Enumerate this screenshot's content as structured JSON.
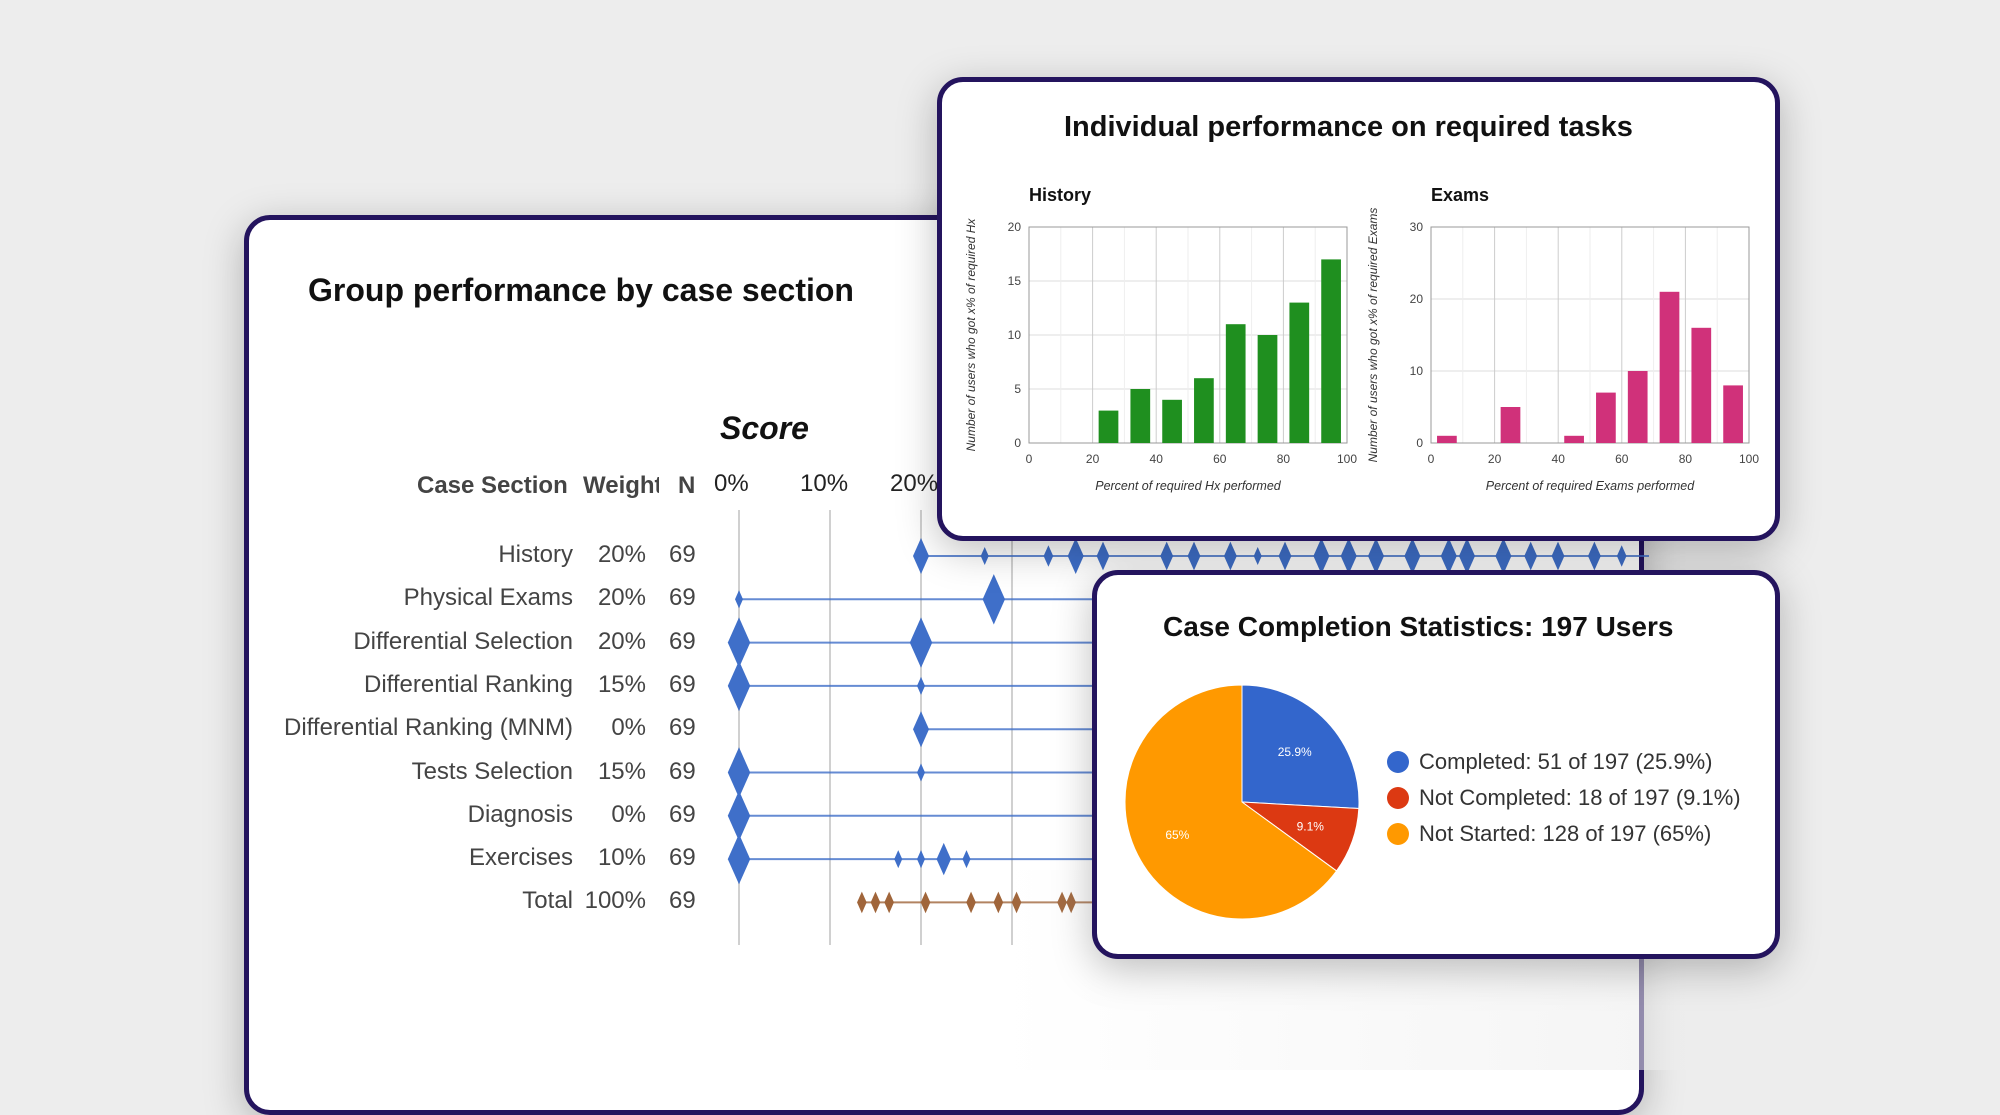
{
  "group": {
    "title": "Group performance by case section",
    "score_label": "Score",
    "headers": {
      "section": "Case Section",
      "weight": "Weight",
      "n": "N"
    },
    "axis_ticks": [
      "0%",
      "10%",
      "20%"
    ],
    "rows": [
      {
        "section": "History",
        "weight": "20%",
        "n": "69"
      },
      {
        "section": "Physical Exams",
        "weight": "20%",
        "n": "69"
      },
      {
        "section": "Differential Selection",
        "weight": "20%",
        "n": "69"
      },
      {
        "section": "Differential Ranking",
        "weight": "15%",
        "n": "69"
      },
      {
        "section": "Differential Ranking (MNM)",
        "weight": "0%",
        "n": "69"
      },
      {
        "section": "Tests Selection",
        "weight": "15%",
        "n": "69"
      },
      {
        "section": "Diagnosis",
        "weight": "0%",
        "n": "69"
      },
      {
        "section": "Exercises",
        "weight": "10%",
        "n": "69"
      },
      {
        "section": "Total",
        "weight": "100%",
        "n": "69"
      }
    ],
    "colors": {
      "section_marker": "#3f6fc9",
      "total_marker": "#a0653a"
    }
  },
  "individual": {
    "title": "Individual performance on required tasks"
  },
  "pie": {
    "title": "Case Completion Statistics: 197 Users",
    "legend": [
      {
        "label": "Completed: 51 of 197 (25.9%)",
        "color": "#3366cc"
      },
      {
        "label": "Not Completed: 18 of 197 (9.1%)",
        "color": "#dc3912"
      },
      {
        "label": "Not Started: 128 of 197 (65%)",
        "color": "#ff9900"
      }
    ]
  },
  "chart_data": [
    {
      "type": "scatter",
      "title": "Group performance by case section",
      "subtitle": "Score",
      "categories": [
        "History",
        "Physical Exams",
        "Differential Selection",
        "Differential Ranking",
        "Differential Ranking (MNM)",
        "Tests Selection",
        "Diagnosis",
        "Exercises",
        "Total"
      ],
      "x_ticks": [
        "0%",
        "10%",
        "20%"
      ],
      "points": [
        {
          "row": 0,
          "x": [
            20,
            27,
            34,
            37,
            40,
            47,
            50,
            54,
            57,
            60,
            64,
            67,
            70,
            74,
            78,
            80,
            84,
            87,
            90,
            94,
            97
          ],
          "size": [
            1,
            0.5,
            0.6,
            1,
            0.8,
            0.8,
            0.8,
            0.8,
            0.5,
            0.8,
            1,
            1,
            1,
            1,
            1,
            1,
            1,
            0.8,
            0.8,
            0.8,
            0.6
          ]
        },
        {
          "row": 1,
          "x": [
            0,
            28
          ],
          "size": [
            0.5,
            1.4
          ]
        },
        {
          "row": 2,
          "x": [
            0,
            20
          ],
          "size": [
            1.4,
            1.4
          ]
        },
        {
          "row": 3,
          "x": [
            0,
            20
          ],
          "size": [
            1.4,
            0.5
          ]
        },
        {
          "row": 4,
          "x": [
            20
          ],
          "size": [
            1
          ]
        },
        {
          "row": 5,
          "x": [
            0,
            20
          ],
          "size": [
            1.4,
            0.5
          ]
        },
        {
          "row": 6,
          "x": [
            0
          ],
          "size": [
            1.4
          ]
        },
        {
          "row": 7,
          "x": [
            0,
            17.5,
            20,
            22.5,
            25
          ],
          "size": [
            1.4,
            0.5,
            0.5,
            0.9,
            0.5
          ]
        },
        {
          "row": 8,
          "x": [
            13.5,
            15,
            16.5,
            20.5,
            25.5,
            28.5,
            30.5,
            35.5,
            36.5
          ],
          "size": [
            0.6,
            0.6,
            0.6,
            0.6,
            0.6,
            0.6,
            0.6,
            0.6,
            0.6
          ]
        }
      ]
    },
    {
      "type": "bar",
      "title": "History",
      "xlabel": "Percent of required Hx performed",
      "ylabel": "Number of users who got x% of required Hx",
      "x": [
        5,
        15,
        25,
        35,
        45,
        55,
        65,
        75,
        85,
        95
      ],
      "values": [
        0,
        0,
        3,
        5,
        4,
        6,
        11,
        10,
        13,
        17
      ],
      "xlim": [
        0,
        100
      ],
      "ylim": [
        0,
        20
      ],
      "x_ticks": [
        "0",
        "20",
        "40",
        "60",
        "80",
        "100"
      ],
      "y_ticks": [
        "0",
        "5",
        "10",
        "15",
        "20"
      ],
      "color": "#1f8f1f",
      "grid": true
    },
    {
      "type": "bar",
      "title": "Exams",
      "xlabel": "Percent of required Exams performed",
      "ylabel": "Number of users who got x% of required Exams",
      "x": [
        5,
        15,
        25,
        35,
        45,
        55,
        65,
        75,
        85,
        95
      ],
      "values": [
        1,
        0,
        5,
        0,
        1,
        7,
        10,
        21,
        16,
        8
      ],
      "xlim": [
        0,
        100
      ],
      "ylim": [
        0,
        30
      ],
      "x_ticks": [
        "0",
        "20",
        "40",
        "60",
        "80",
        "100"
      ],
      "y_ticks": [
        "0",
        "10",
        "20",
        "30"
      ],
      "color": "#d0317a",
      "grid": true
    },
    {
      "type": "pie",
      "title": "Case Completion Statistics: 197 Users",
      "labels": [
        "Completed",
        "Not Completed",
        "Not Started"
      ],
      "values": [
        51,
        18,
        128
      ],
      "slice_labels": [
        "25.9%",
        "9.1%",
        "65%"
      ],
      "colors": [
        "#3366cc",
        "#dc3912",
        "#ff9900"
      ],
      "legend": "right"
    }
  ]
}
